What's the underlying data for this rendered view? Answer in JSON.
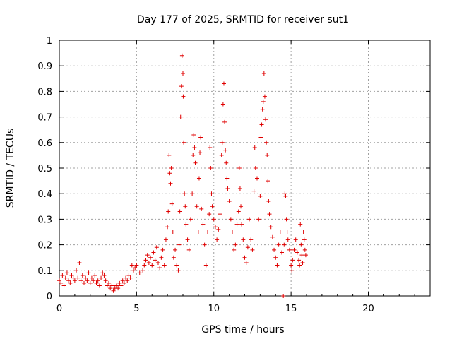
{
  "chart_data": {
    "type": "scatter",
    "title": "Day 177 of 2025, SRMTID for receiver sut1",
    "xlabel": "GPS time / hours",
    "ylabel": "SRMTID / TECUs",
    "xlim": [
      0,
      24
    ],
    "ylim": [
      0,
      1
    ],
    "xticks": [
      0,
      5,
      10,
      15,
      20
    ],
    "yticks": [
      0,
      0.1,
      0.2,
      0.3,
      0.4,
      0.5,
      0.6,
      0.7,
      0.8,
      0.9,
      1
    ],
    "ytick_labels": [
      "0",
      "0.1",
      "0.2",
      "0.3",
      "0.4",
      "0.5",
      "0.6",
      "0.7",
      "0.8",
      "0.9",
      "1"
    ],
    "grid": true,
    "marker": "plus",
    "color": "#e00000",
    "series": [
      {
        "name": "sut1",
        "points": [
          [
            0.0,
            0.06
          ],
          [
            0.1,
            0.05
          ],
          [
            0.2,
            0.08
          ],
          [
            0.3,
            0.04
          ],
          [
            0.4,
            0.07
          ],
          [
            0.5,
            0.09
          ],
          [
            0.6,
            0.06
          ],
          [
            0.7,
            0.05
          ],
          [
            0.8,
            0.08
          ],
          [
            0.9,
            0.07
          ],
          [
            1.0,
            0.06
          ],
          [
            1.1,
            0.1
          ],
          [
            1.2,
            0.07
          ],
          [
            1.3,
            0.13
          ],
          [
            1.4,
            0.06
          ],
          [
            1.5,
            0.08
          ],
          [
            1.6,
            0.05
          ],
          [
            1.7,
            0.07
          ],
          [
            1.8,
            0.06
          ],
          [
            1.9,
            0.09
          ],
          [
            2.0,
            0.05
          ],
          [
            2.1,
            0.07
          ],
          [
            2.2,
            0.06
          ],
          [
            2.3,
            0.08
          ],
          [
            2.4,
            0.05
          ],
          [
            2.5,
            0.06
          ],
          [
            2.6,
            0.04
          ],
          [
            2.7,
            0.07
          ],
          [
            2.8,
            0.09
          ],
          [
            2.9,
            0.08
          ],
          [
            3.0,
            0.06
          ],
          [
            3.1,
            0.04
          ],
          [
            3.2,
            0.05
          ],
          [
            3.3,
            0.03
          ],
          [
            3.4,
            0.04
          ],
          [
            3.5,
            0.02
          ],
          [
            3.6,
            0.03
          ],
          [
            3.7,
            0.04
          ],
          [
            3.8,
            0.03
          ],
          [
            3.9,
            0.05
          ],
          [
            4.0,
            0.04
          ],
          [
            4.1,
            0.06
          ],
          [
            4.2,
            0.05
          ],
          [
            4.3,
            0.07
          ],
          [
            4.4,
            0.06
          ],
          [
            4.5,
            0.08
          ],
          [
            4.6,
            0.07
          ],
          [
            4.7,
            0.12
          ],
          [
            4.8,
            0.1
          ],
          [
            4.9,
            0.11
          ],
          [
            5.0,
            0.12
          ],
          [
            5.2,
            0.09
          ],
          [
            5.4,
            0.1
          ],
          [
            5.5,
            0.12
          ],
          [
            5.6,
            0.14
          ],
          [
            5.7,
            0.16
          ],
          [
            5.8,
            0.13
          ],
          [
            5.9,
            0.15
          ],
          [
            6.0,
            0.12
          ],
          [
            6.1,
            0.17
          ],
          [
            6.2,
            0.14
          ],
          [
            6.3,
            0.19
          ],
          [
            6.4,
            0.13
          ],
          [
            6.5,
            0.11
          ],
          [
            6.6,
            0.15
          ],
          [
            6.7,
            0.18
          ],
          [
            6.8,
            0.12
          ],
          [
            6.9,
            0.22
          ],
          [
            7.0,
            0.27
          ],
          [
            7.05,
            0.33
          ],
          [
            7.1,
            0.55
          ],
          [
            7.15,
            0.48
          ],
          [
            7.2,
            0.44
          ],
          [
            7.25,
            0.5
          ],
          [
            7.3,
            0.36
          ],
          [
            7.35,
            0.25
          ],
          [
            7.4,
            0.15
          ],
          [
            7.5,
            0.18
          ],
          [
            7.6,
            0.12
          ],
          [
            7.7,
            0.1
          ],
          [
            7.75,
            0.2
          ],
          [
            7.8,
            0.33
          ],
          [
            7.85,
            0.7
          ],
          [
            7.9,
            0.82
          ],
          [
            7.95,
            0.94
          ],
          [
            8.0,
            0.87
          ],
          [
            8.02,
            0.78
          ],
          [
            8.05,
            0.6
          ],
          [
            8.1,
            0.4
          ],
          [
            8.15,
            0.35
          ],
          [
            8.2,
            0.28
          ],
          [
            8.3,
            0.22
          ],
          [
            8.4,
            0.18
          ],
          [
            8.5,
            0.3
          ],
          [
            8.6,
            0.4
          ],
          [
            8.65,
            0.55
          ],
          [
            8.7,
            0.63
          ],
          [
            8.75,
            0.58
          ],
          [
            8.8,
            0.52
          ],
          [
            8.9,
            0.35
          ],
          [
            9.0,
            0.25
          ],
          [
            9.05,
            0.46
          ],
          [
            9.1,
            0.56
          ],
          [
            9.15,
            0.62
          ],
          [
            9.2,
            0.34
          ],
          [
            9.3,
            0.28
          ],
          [
            9.4,
            0.2
          ],
          [
            9.5,
            0.12
          ],
          [
            9.6,
            0.25
          ],
          [
            9.7,
            0.32
          ],
          [
            9.75,
            0.58
          ],
          [
            9.8,
            0.5
          ],
          [
            9.85,
            0.4
          ],
          [
            9.9,
            0.35
          ],
          [
            10.0,
            0.3
          ],
          [
            10.1,
            0.27
          ],
          [
            10.2,
            0.22
          ],
          [
            10.3,
            0.26
          ],
          [
            10.4,
            0.32
          ],
          [
            10.5,
            0.55
          ],
          [
            10.55,
            0.6
          ],
          [
            10.6,
            0.75
          ],
          [
            10.65,
            0.83
          ],
          [
            10.7,
            0.68
          ],
          [
            10.75,
            0.57
          ],
          [
            10.8,
            0.52
          ],
          [
            10.85,
            0.46
          ],
          [
            10.9,
            0.42
          ],
          [
            11.0,
            0.37
          ],
          [
            11.1,
            0.3
          ],
          [
            11.2,
            0.25
          ],
          [
            11.3,
            0.18
          ],
          [
            11.4,
            0.2
          ],
          [
            11.5,
            0.28
          ],
          [
            11.6,
            0.33
          ],
          [
            11.65,
            0.5
          ],
          [
            11.7,
            0.42
          ],
          [
            11.75,
            0.35
          ],
          [
            11.8,
            0.28
          ],
          [
            11.9,
            0.22
          ],
          [
            12.0,
            0.15
          ],
          [
            12.1,
            0.13
          ],
          [
            12.2,
            0.19
          ],
          [
            12.3,
            0.3
          ],
          [
            12.4,
            0.22
          ],
          [
            12.5,
            0.18
          ],
          [
            12.6,
            0.41
          ],
          [
            12.65,
            0.58
          ],
          [
            12.7,
            0.5
          ],
          [
            12.8,
            0.46
          ],
          [
            12.9,
            0.3
          ],
          [
            13.0,
            0.39
          ],
          [
            13.05,
            0.62
          ],
          [
            13.1,
            0.67
          ],
          [
            13.15,
            0.73
          ],
          [
            13.2,
            0.76
          ],
          [
            13.25,
            0.87
          ],
          [
            13.3,
            0.78
          ],
          [
            13.35,
            0.69
          ],
          [
            13.4,
            0.6
          ],
          [
            13.45,
            0.55
          ],
          [
            13.5,
            0.45
          ],
          [
            13.55,
            0.37
          ],
          [
            13.6,
            0.32
          ],
          [
            13.7,
            0.27
          ],
          [
            13.8,
            0.23
          ],
          [
            13.9,
            0.18
          ],
          [
            14.0,
            0.15
          ],
          [
            14.1,
            0.12
          ],
          [
            14.2,
            0.2
          ],
          [
            14.3,
            0.25
          ],
          [
            14.4,
            0.17
          ],
          [
            14.5,
            0.0
          ],
          [
            14.55,
            0.2
          ],
          [
            14.6,
            0.4
          ],
          [
            14.65,
            0.39
          ],
          [
            14.7,
            0.3
          ],
          [
            14.75,
            0.25
          ],
          [
            14.8,
            0.22
          ],
          [
            14.9,
            0.18
          ],
          [
            15.0,
            0.12
          ],
          [
            15.05,
            0.1
          ],
          [
            15.1,
            0.14
          ],
          [
            15.2,
            0.18
          ],
          [
            15.3,
            0.22
          ],
          [
            15.4,
            0.17
          ],
          [
            15.5,
            0.14
          ],
          [
            15.55,
            0.12
          ],
          [
            15.6,
            0.28
          ],
          [
            15.65,
            0.2
          ],
          [
            15.7,
            0.16
          ],
          [
            15.75,
            0.13
          ],
          [
            15.8,
            0.25
          ],
          [
            15.85,
            0.22
          ],
          [
            15.9,
            0.18
          ],
          [
            15.95,
            0.16
          ]
        ]
      }
    ]
  }
}
